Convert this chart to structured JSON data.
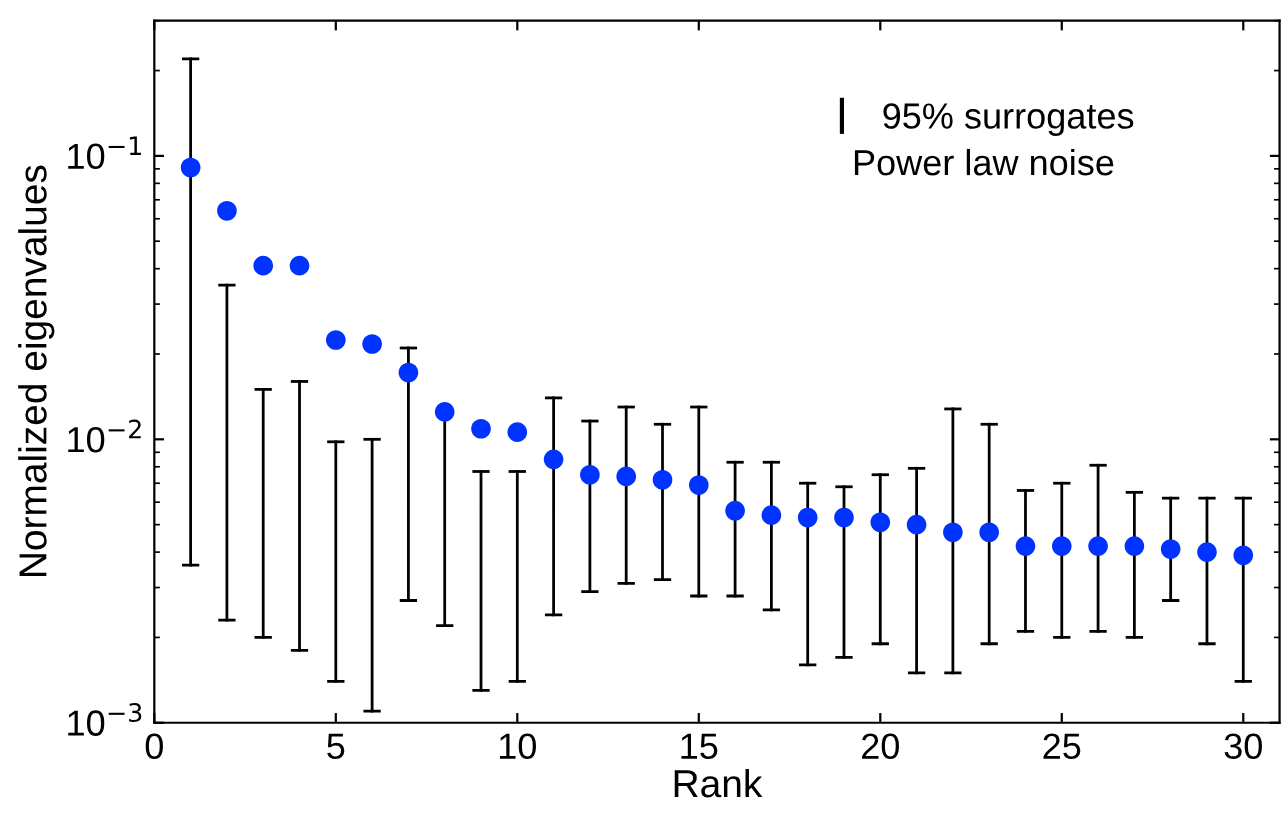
{
  "chart_data": {
    "type": "scatter",
    "xlabel": "Rank",
    "ylabel": "Normalized eigenvalues",
    "x": [
      1,
      2,
      3,
      4,
      5,
      6,
      7,
      8,
      9,
      10,
      11,
      12,
      13,
      14,
      15,
      16,
      17,
      18,
      19,
      20,
      21,
      22,
      23,
      24,
      25,
      26,
      27,
      28,
      29,
      30
    ],
    "series": [
      {
        "name": "95% surrogates",
        "color": "#0033ff",
        "values": [
          0.091,
          0.064,
          0.041,
          0.041,
          0.0224,
          0.0217,
          0.0172,
          0.0125,
          0.0109,
          0.0106,
          0.0085,
          0.0075,
          0.0074,
          0.0072,
          0.0069,
          0.0056,
          0.0054,
          0.0053,
          0.0053,
          0.0051,
          0.005,
          0.0047,
          0.0047,
          0.0042,
          0.0042,
          0.0042,
          0.0042,
          0.0041,
          0.004,
          0.0039
        ],
        "errors": [
          [
            0.0036,
            0.22
          ],
          [
            0.0023,
            0.035
          ],
          [
            0.002,
            0.015
          ],
          [
            0.0018,
            0.016
          ],
          [
            0.0014,
            0.0098
          ],
          [
            0.0011,
            0.01
          ],
          [
            0.0027,
            0.021
          ],
          [
            0.0022,
            0.0126
          ],
          [
            0.0013,
            0.0077
          ],
          [
            0.0014,
            0.0077
          ],
          [
            0.0024,
            0.014
          ],
          [
            0.0029,
            0.0116
          ],
          [
            0.0031,
            0.013
          ],
          [
            0.0032,
            0.0113
          ],
          [
            0.0028,
            0.013
          ],
          [
            0.0028,
            0.0083
          ],
          [
            0.0025,
            0.0083
          ],
          [
            0.0016,
            0.007
          ],
          [
            0.0017,
            0.0068
          ],
          [
            0.0019,
            0.0075
          ],
          [
            0.0015,
            0.0079
          ],
          [
            0.0015,
            0.0128
          ],
          [
            0.0019,
            0.0113
          ],
          [
            0.0021,
            0.0066
          ],
          [
            0.002,
            0.007
          ],
          [
            0.0021,
            0.0081
          ],
          [
            0.002,
            0.0065
          ],
          [
            0.0027,
            0.0062
          ],
          [
            0.0019,
            0.0062
          ],
          [
            0.0014,
            0.0062
          ]
        ]
      }
    ],
    "annotations": [
      "Power law noise"
    ],
    "log": "y",
    "xlim": [
      0,
      31
    ],
    "xticks": [
      0,
      5,
      10,
      15,
      20,
      25,
      30
    ],
    "ylim": [
      0.001,
      0.3
    ],
    "yticks": [
      {
        "value": 0.001,
        "label": "10$^{−3}$"
      },
      {
        "value": 0.01,
        "label": "10$^{−2}$"
      },
      {
        "value": 0.1,
        "label": "10$^{−1}$"
      }
    ],
    "marker": "circle",
    "grid": false,
    "legend": "top right"
  }
}
